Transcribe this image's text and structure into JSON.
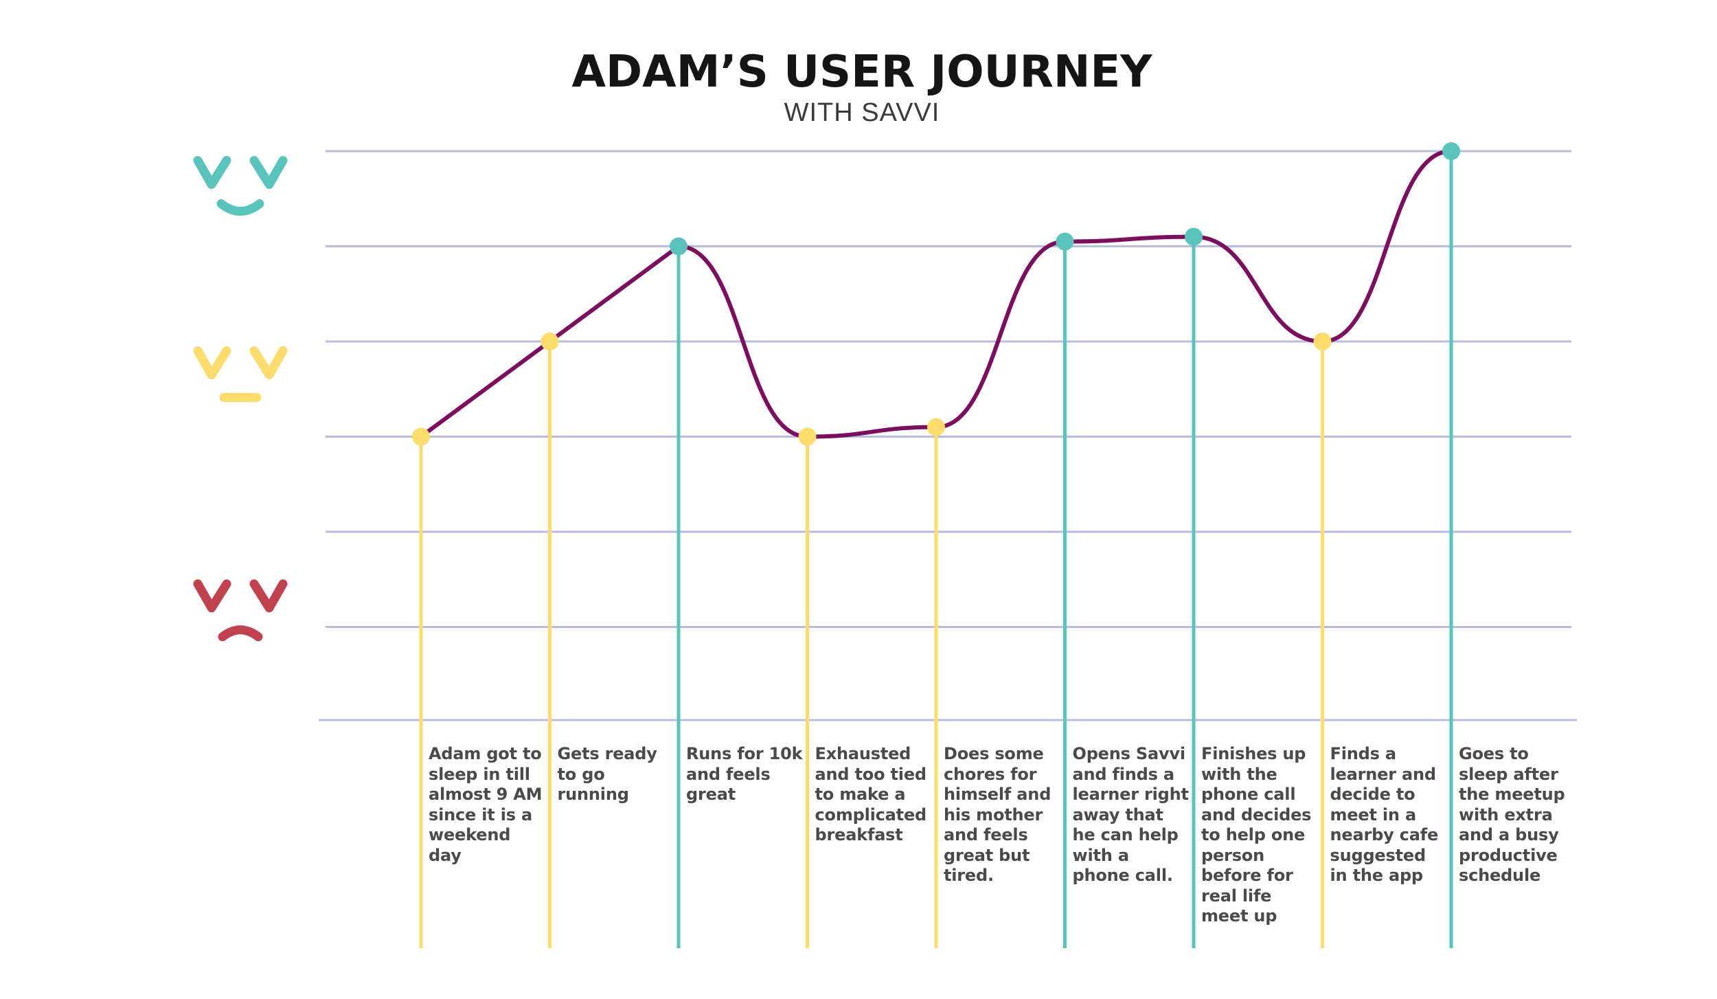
{
  "chart_data": {
    "type": "line",
    "title": "ADAM’S USER JOURNEY",
    "subtitle": "WITH SAVVI",
    "y_levels": [
      "happy",
      "neutral",
      "sad"
    ],
    "ylim": [
      -3,
      3
    ],
    "grid": true,
    "line_color": "#7b0e5e",
    "status_colors": {
      "positive": "#5ac4bc",
      "neutral": "#fbdc6c",
      "negative": "#c0424f"
    },
    "face_icons": [
      {
        "name": "happy-face-icon",
        "mood": "happy",
        "color": "#5ac4bc"
      },
      {
        "name": "neutral-face-icon",
        "mood": "neutral",
        "color": "#fbdc6c"
      },
      {
        "name": "sad-face-icon",
        "mood": "sad",
        "color": "#c0424f"
      }
    ],
    "points": [
      {
        "y": 0.0,
        "status": "neutral",
        "label": "Adam got to sleep in till almost 9 AM since it is a weekend day"
      },
      {
        "y": 1.0,
        "status": "neutral",
        "label": "Gets ready to go running"
      },
      {
        "y": 2.0,
        "status": "positive",
        "label": "Runs for 10k and feels great"
      },
      {
        "y": 0.0,
        "status": "neutral",
        "label": "Exhausted and too tied to make a complicated breakfast"
      },
      {
        "y": 0.1,
        "status": "neutral",
        "label": "Does some chores for himself and his mother and feels great but tired."
      },
      {
        "y": 2.05,
        "status": "positive",
        "label": "Opens Savvi and finds a learner right away that he can help with a phone call."
      },
      {
        "y": 2.1,
        "status": "positive",
        "label": "Finishes up with the phone call and decides to help one person before for real life meet up"
      },
      {
        "y": 1.0,
        "status": "neutral",
        "label": "Finds a learner and decide to meet in a nearby cafe suggested in the app"
      },
      {
        "y": 3.0,
        "status": "positive",
        "label": "Goes to sleep after the meetup with extra and a busy productive schedule"
      }
    ]
  }
}
